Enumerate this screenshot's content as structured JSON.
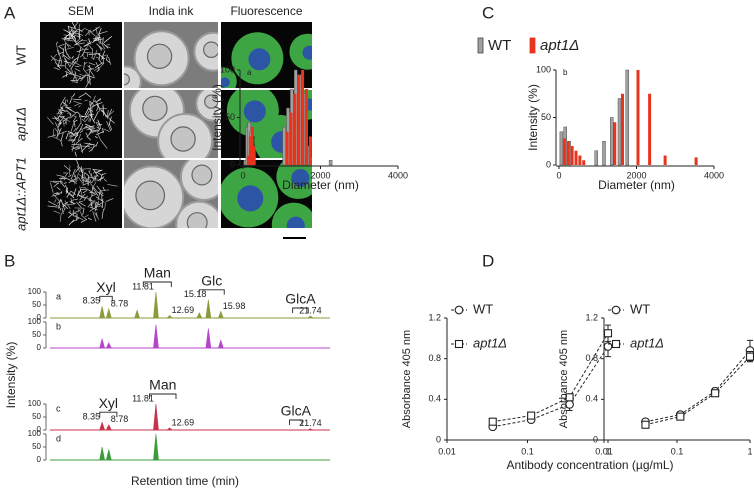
{
  "panel_a": {
    "panel": "A",
    "columns": [
      "SEM",
      "India ink",
      "Fluorescence"
    ],
    "rows": [
      "WT",
      "apt1Δ",
      "apt1Δ::APT1"
    ]
  },
  "chart_data": [
    {
      "type": "chromatogram",
      "panel": "B",
      "y_label": "Intensity (%)",
      "x_label": "Retention time (min)",
      "xlim": [
        5,
        23
      ],
      "ylim": [
        0,
        100
      ],
      "yticks": [
        0,
        50,
        100
      ],
      "traces": [
        {
          "name": "a",
          "color": "#8c9a3c",
          "x": [
            8.35,
            8.78,
            10.6,
            11.81,
            12.69,
            14.6,
            15.18,
            15.98,
            21.74
          ],
          "values": [
            45,
            35,
            30,
            100,
            10,
            20,
            70,
            25,
            8
          ],
          "peak_labels": [
            8.35,
            8.78,
            11.81,
            12.69,
            15.18,
            15.98,
            21.74
          ]
        },
        {
          "name": "b",
          "color": "#b446c8",
          "x": [
            8.35,
            8.78,
            11.81,
            15.18,
            15.98
          ],
          "values": [
            35,
            20,
            90,
            75,
            30
          ]
        },
        {
          "name": "c",
          "color": "#c8324a",
          "x": [
            8.35,
            8.78,
            11.81,
            12.69,
            21.74
          ],
          "values": [
            30,
            20,
            100,
            8,
            5
          ],
          "peak_labels": [
            8.35,
            8.78,
            11.81,
            12.69,
            21.74
          ]
        },
        {
          "name": "d",
          "color": "#3c9c3c",
          "x": [
            8.35,
            8.78,
            11.81
          ],
          "values": [
            50,
            40,
            100
          ]
        }
      ],
      "annotations": [
        {
          "text": "Xyl",
          "trace": 0,
          "x": [
            8.2,
            9.0
          ]
        },
        {
          "text": "Man",
          "trace": 0,
          "x": [
            11.0,
            12.8
          ]
        },
        {
          "text": "Glc",
          "trace": 0,
          "x": [
            14.6,
            16.2
          ]
        },
        {
          "text": "GlcA",
          "trace": 0,
          "x": [
            20.6,
            21.6
          ]
        },
        {
          "text": "Xyl",
          "trace": 2,
          "x": [
            8.2,
            9.3
          ]
        },
        {
          "text": "Man",
          "trace": 2,
          "x": [
            11.4,
            13.1
          ]
        },
        {
          "text": "GlcA",
          "trace": 2,
          "x": [
            20.4,
            21.2
          ]
        }
      ]
    },
    {
      "type": "bar",
      "panel": "C",
      "x_label": "Diameter (nm)",
      "y_label": "Intensity (%)",
      "xlim": [
        0,
        4000
      ],
      "ylim": [
        0,
        100
      ],
      "xticks": [
        0,
        2000,
        4000
      ],
      "yticks": [
        0,
        50,
        100
      ],
      "series": [
        {
          "name": "WT",
          "color": "#a0a0a0"
        },
        {
          "name": "apt1Δ",
          "color": "#e8341c"
        }
      ],
      "panels": [
        {
          "label": "a",
          "x": [
            100,
            150,
            200,
            250,
            300,
            1100,
            1200,
            1300,
            1400,
            1500,
            1600,
            1700,
            2300
          ],
          "values": [
            [
              5,
              40,
              45,
              35,
              5,
              40,
              60,
              80,
              100,
              95,
              75,
              20,
              5
            ],
            [
              10,
              30,
              40,
              20,
              0,
              35,
              55,
              75,
              95,
              100,
              80,
              30,
              0
            ]
          ]
        },
        {
          "label": "b",
          "x": [
            100,
            200,
            300,
            400,
            500,
            600,
            1000,
            1200,
            1400,
            1600,
            1800,
            2000,
            2300,
            2700,
            3500
          ],
          "values": [
            [
              35,
              40,
              25,
              0,
              0,
              0,
              15,
              25,
              50,
              70,
              100,
              0,
              0,
              0,
              0
            ],
            [
              28,
              25,
              20,
              15,
              10,
              5,
              0,
              0,
              45,
              75,
              0,
              100,
              75,
              10,
              8
            ]
          ]
        }
      ]
    },
    {
      "type": "line",
      "panel": "D",
      "x_label": "Antibody concentration (µg/mL)",
      "y_label": "Absorbance 405 nm",
      "xscale": "log",
      "xlim": [
        0.01,
        1
      ],
      "xticks": [
        0.01,
        0.1,
        1
      ],
      "ylim": [
        0,
        1.2
      ],
      "yticks": [
        0,
        0.4,
        0.8,
        1.2
      ],
      "x": [
        0.037,
        0.111,
        0.333,
        1
      ],
      "series": [
        {
          "name": "WT",
          "marker": "circle"
        },
        {
          "name": "apt1Δ",
          "marker": "square"
        }
      ],
      "panels": [
        {
          "values": [
            [
              0.13,
              0.2,
              0.35,
              0.92
            ],
            [
              0.18,
              0.24,
              0.42,
              1.05
            ]
          ],
          "errors": [
            [
              0.02,
              0.02,
              0.06,
              0.1
            ],
            [
              0.02,
              0.02,
              0.03,
              0.08
            ]
          ]
        },
        {
          "values": [
            [
              0.18,
              0.25,
              0.48,
              0.88
            ],
            [
              0.15,
              0.23,
              0.46,
              0.82
            ]
          ],
          "errors": [
            [
              0.02,
              0.02,
              0.03,
              0.1
            ],
            [
              0.02,
              0.02,
              0.02,
              0.05
            ]
          ]
        }
      ]
    }
  ]
}
